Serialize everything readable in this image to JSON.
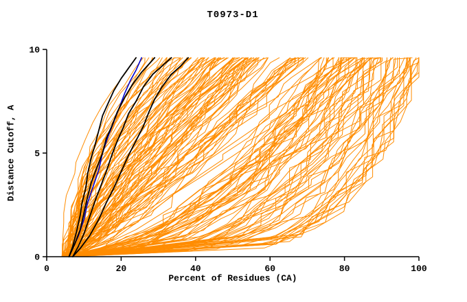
{
  "chart_data": {
    "type": "line",
    "title": "T0973-D1",
    "xlabel": "Percent of Residues (CA)",
    "ylabel": "Distance Cutoff, A",
    "xlim": [
      0,
      100
    ],
    "ylim": [
      0,
      10
    ],
    "x_ticks": [
      0,
      20,
      40,
      60,
      80,
      100
    ],
    "y_ticks": [
      0,
      5,
      10
    ],
    "grid": false,
    "legend": "none",
    "colors": {
      "background": "#ffffff",
      "axis": "#000000",
      "predictions": "#ff8c00",
      "highlight_black": "#000000",
      "highlight_blue": "#0000cc"
    },
    "background_series": {
      "name": "prediction-curves",
      "count": 160,
      "seed": 20973,
      "x_start_range": [
        4,
        8
      ],
      "x_top_range": [
        24,
        100
      ],
      "y_top": 9.6,
      "width": 1
    },
    "highlight_series": [
      {
        "name": "highlight-curve-blue",
        "color": "#0000cc",
        "width": 1.6,
        "points": [
          [
            6,
            0
          ],
          [
            7,
            0.4
          ],
          [
            8.5,
            1.0
          ],
          [
            10,
            1.8
          ],
          [
            11,
            2.6
          ],
          [
            12.5,
            3.4
          ],
          [
            14,
            4.2
          ],
          [
            15,
            5.0
          ],
          [
            16.5,
            5.8
          ],
          [
            18,
            6.5
          ],
          [
            19.5,
            7.2
          ],
          [
            21,
            7.9
          ],
          [
            22.5,
            8.5
          ],
          [
            24,
            9.0
          ],
          [
            25.5,
            9.6
          ]
        ]
      },
      {
        "name": "highlight-curve-black-1",
        "color": "#000000",
        "width": 1.8,
        "points": [
          [
            6,
            0
          ],
          [
            7,
            0.5
          ],
          [
            8,
            1.2
          ],
          [
            9,
            2.0
          ],
          [
            9.5,
            2.6
          ],
          [
            10.5,
            3.3
          ],
          [
            11,
            4.0
          ],
          [
            12,
            4.8
          ],
          [
            13,
            5.4
          ],
          [
            14,
            6.1
          ],
          [
            15,
            6.8
          ],
          [
            16.5,
            7.4
          ],
          [
            18,
            8.0
          ],
          [
            20,
            8.6
          ],
          [
            22,
            9.1
          ],
          [
            24,
            9.6
          ]
        ]
      },
      {
        "name": "highlight-curve-black-2",
        "color": "#000000",
        "width": 1.8,
        "points": [
          [
            6,
            0
          ],
          [
            7.5,
            0.6
          ],
          [
            9,
            1.3
          ],
          [
            10,
            2.1
          ],
          [
            11,
            2.9
          ],
          [
            12,
            3.6
          ],
          [
            13.5,
            4.3
          ],
          [
            15,
            5.0
          ],
          [
            16,
            5.7
          ],
          [
            17.5,
            6.3
          ],
          [
            19,
            7.0
          ],
          [
            21,
            7.7
          ],
          [
            23,
            8.3
          ],
          [
            25.5,
            8.9
          ],
          [
            27.5,
            9.3
          ],
          [
            29,
            9.6
          ]
        ]
      },
      {
        "name": "highlight-curve-black-3",
        "color": "#000000",
        "width": 1.8,
        "points": [
          [
            7,
            0
          ],
          [
            8.5,
            0.5
          ],
          [
            10,
            1.1
          ],
          [
            11.5,
            1.9
          ],
          [
            13,
            2.7
          ],
          [
            14.5,
            3.4
          ],
          [
            16,
            4.1
          ],
          [
            17.5,
            4.9
          ],
          [
            19,
            5.6
          ],
          [
            20.5,
            6.2
          ],
          [
            22,
            6.9
          ],
          [
            24,
            7.5
          ],
          [
            26,
            8.2
          ],
          [
            28.5,
            8.8
          ],
          [
            31,
            9.2
          ],
          [
            33.5,
            9.6
          ]
        ]
      },
      {
        "name": "highlight-curve-black-4",
        "color": "#000000",
        "width": 1.8,
        "points": [
          [
            7,
            0
          ],
          [
            9,
            0.4
          ],
          [
            11.5,
            1.0
          ],
          [
            14,
            1.8
          ],
          [
            16,
            2.6
          ],
          [
            18,
            3.3
          ],
          [
            20,
            4.1
          ],
          [
            22,
            4.9
          ],
          [
            24,
            5.6
          ],
          [
            26,
            6.3
          ],
          [
            27.5,
            7.0
          ],
          [
            29,
            7.6
          ],
          [
            31,
            8.2
          ],
          [
            33.5,
            8.8
          ],
          [
            36,
            9.2
          ],
          [
            38,
            9.6
          ]
        ]
      }
    ]
  }
}
